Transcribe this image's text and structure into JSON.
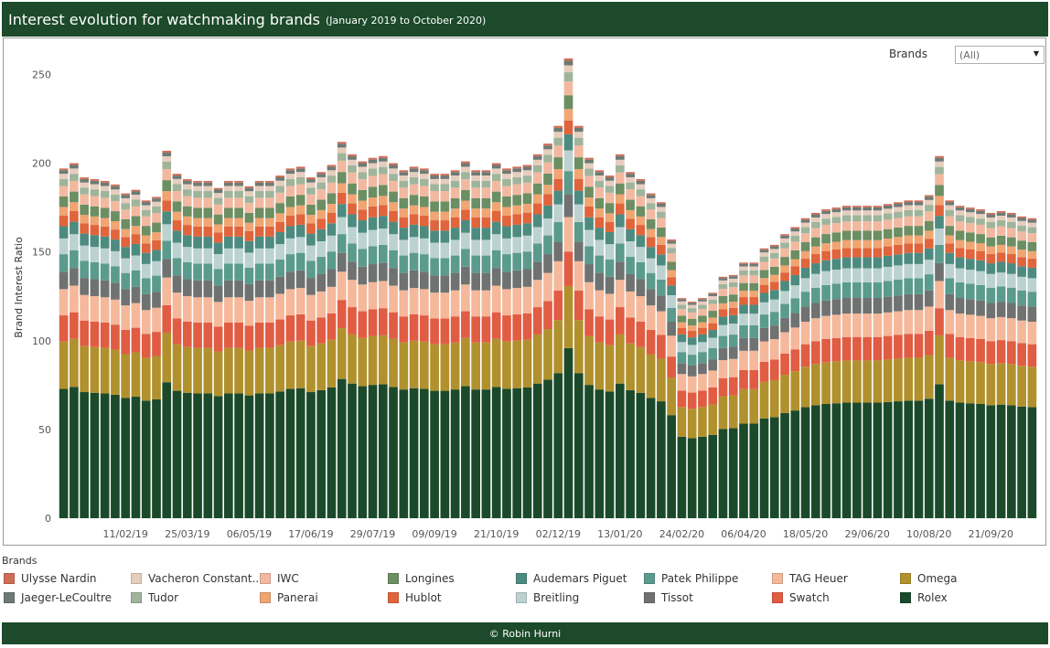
{
  "header": {
    "title": "Interest evolution for watchmaking brands",
    "subtitle": "(January 2019 to October 2020)"
  },
  "filter": {
    "label": "Brands",
    "value": "(All)"
  },
  "legend": {
    "title": "Brands"
  },
  "footer": {
    "credit": "© Robin Hurni"
  },
  "chart_data": {
    "type": "bar",
    "stacked": true,
    "ylabel": "Brand Interest Ratio",
    "xlabel": "",
    "ylim": [
      0,
      260
    ],
    "yticks": [
      0,
      50,
      100,
      150,
      200,
      250
    ],
    "grid": false,
    "legend_position": "bottom",
    "x_tick_labels": [
      "11/02/19",
      "25/03/19",
      "06/05/19",
      "17/06/19",
      "29/07/19",
      "09/09/19",
      "21/10/19",
      "02/12/19",
      "13/01/20",
      "24/02/20",
      "06/04/20",
      "18/05/20",
      "29/06/20",
      "10/08/20",
      "21/09/20"
    ],
    "x_tick_indices": [
      6,
      12,
      18,
      24,
      30,
      36,
      42,
      48,
      54,
      60,
      66,
      72,
      78,
      84,
      90
    ],
    "totals": [
      197,
      200,
      192,
      191,
      190,
      188,
      183,
      185,
      179,
      181,
      207,
      194,
      191,
      190,
      190,
      186,
      190,
      190,
      187,
      190,
      190,
      193,
      197,
      198,
      192,
      195,
      199,
      212,
      205,
      201,
      203,
      204,
      200,
      196,
      198,
      197,
      194,
      194,
      196,
      201,
      196,
      196,
      200,
      197,
      198,
      199,
      205,
      211,
      221,
      259,
      221,
      203,
      196,
      193,
      205,
      195,
      191,
      183,
      178,
      157,
      124,
      122,
      124,
      127,
      136,
      137,
      144,
      144,
      152,
      154,
      160,
      164,
      169,
      172,
      174,
      175,
      176,
      176,
      176,
      176,
      177,
      178,
      179,
      179,
      182,
      204,
      179,
      176,
      175,
      174,
      172,
      173,
      172,
      170,
      169
    ],
    "series": [
      {
        "name": "Rolex",
        "color": "#1b4a2b",
        "shares": 0.37
      },
      {
        "name": "Omega",
        "color": "#b1912d",
        "shares": 0.135
      },
      {
        "name": "Swatch",
        "color": "#e05c43",
        "shares": 0.075
      },
      {
        "name": "TAG Heuer",
        "color": "#f5b89a",
        "shares": 0.075
      },
      {
        "name": "Tissot",
        "color": "#6f7270",
        "shares": 0.05
      },
      {
        "name": "Patek Philippe",
        "color": "#5b9b8e",
        "shares": 0.05
      },
      {
        "name": "Breitling",
        "color": "#bcd2d1",
        "shares": 0.045
      },
      {
        "name": "Audemars Piguet",
        "color": "#4d8b80",
        "shares": 0.035
      },
      {
        "name": "Hublot",
        "color": "#e0643c",
        "shares": 0.03
      },
      {
        "name": "Panerai",
        "color": "#f0a573",
        "shares": 0.025
      },
      {
        "name": "Longines",
        "color": "#6c8e63",
        "shares": 0.03
      },
      {
        "name": "IWC",
        "color": "#f2b9a0",
        "shares": 0.03
      },
      {
        "name": "Tudor",
        "color": "#9fb59b",
        "shares": 0.02
      },
      {
        "name": "Vacheron Constant...",
        "color": "#e7cdbd",
        "shares": 0.015
      },
      {
        "name": "Jaeger-LeCoultre",
        "color": "#6e7a74",
        "shares": 0.01
      },
      {
        "name": "Ulysse Nardin",
        "color": "#cf6c56",
        "shares": 0.005
      }
    ]
  }
}
